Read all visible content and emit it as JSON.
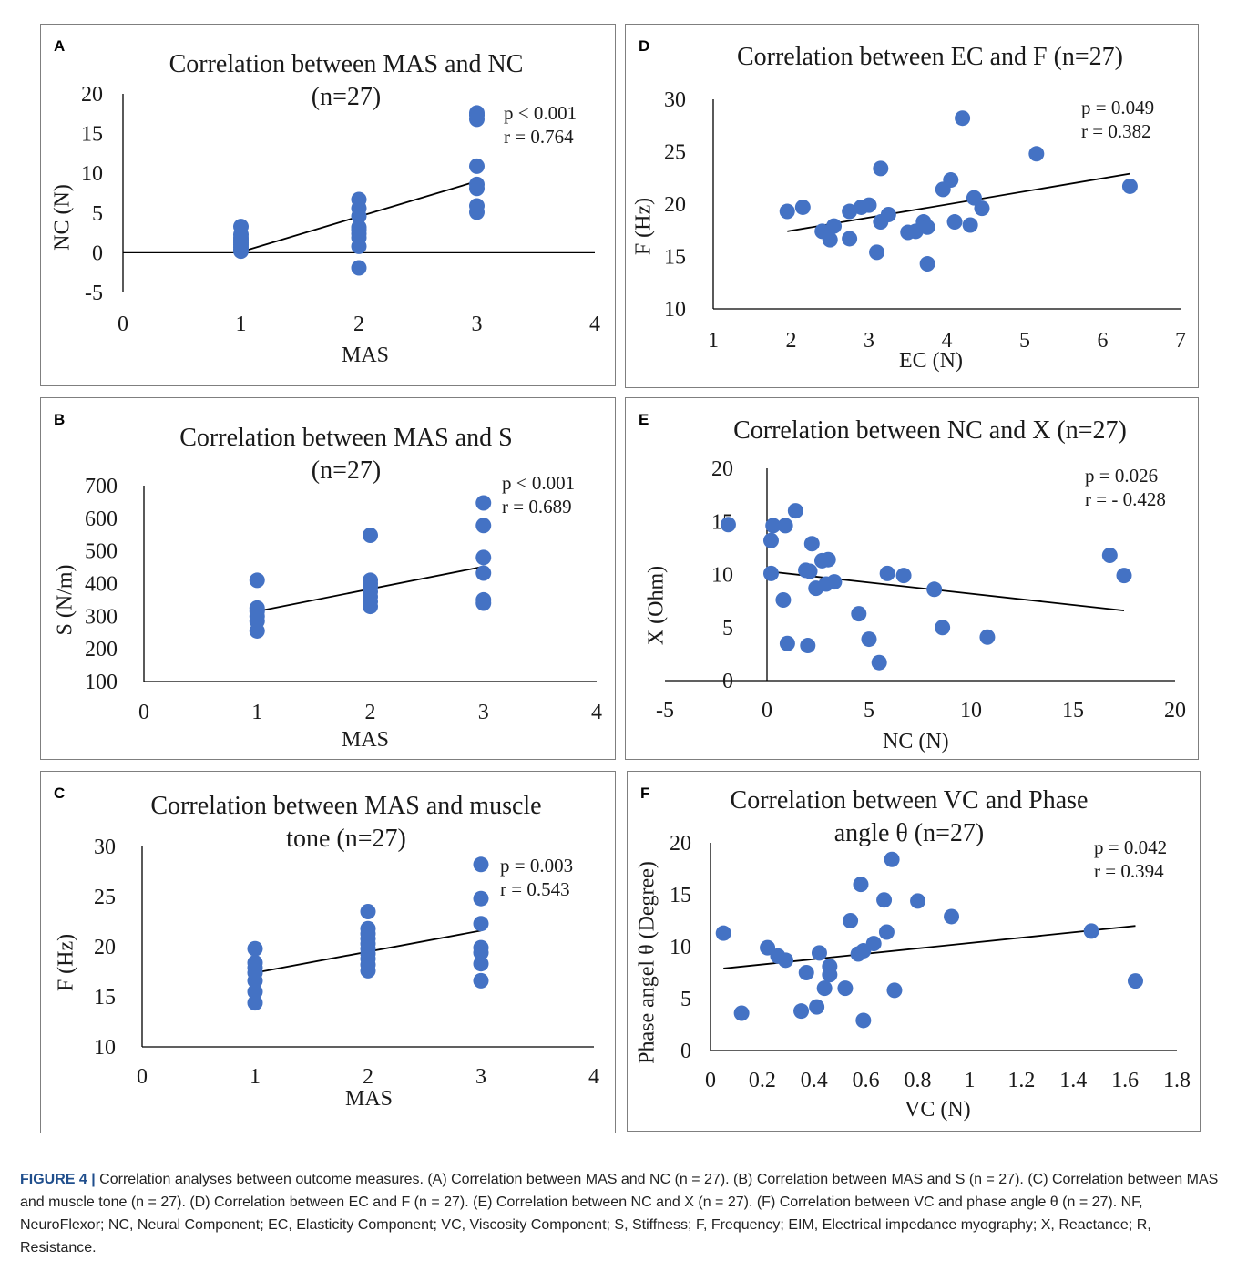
{
  "caption": {
    "figure_label": "FIGURE 4 |",
    "text": " Correlation analyses between outcome measures. (A) Correlation between MAS and NC (n = 27). (B) Correlation between MAS and S (n = 27). (C) Correlation between MAS and muscle tone (n = 27). (D) Correlation between EC and F (n = 27). (E) Correlation between NC and X (n = 27). (F) Correlation between VC and phase angle θ (n = 27). NF, NeuroFlexor; NC, Neural Component; EC, Elasticity Component; VC, Viscosity Component; S, Stiffness; F, Frequency; EIM, Electrical impedance myography; X, Reactance; R, Resistance."
  },
  "colors": {
    "marker": "#4472C4",
    "trendline": "#000000",
    "axis": "#000000",
    "border": "#7f7f7f"
  },
  "chart_data": [
    {
      "panel": "A",
      "type": "scatter",
      "title": "Correlation between MAS and NC\n(n=27)",
      "xlabel": "MAS",
      "ylabel": "NC (N)",
      "xlim": [
        0,
        4
      ],
      "ylim": [
        -5,
        20
      ],
      "xticks": [
        "0",
        "1",
        "2",
        "3",
        "4"
      ],
      "yticks": [
        "-5",
        "0",
        "5",
        "10",
        "15",
        "20"
      ],
      "stats": [
        "p < 0.001",
        "r = 0.764"
      ],
      "trendline": [
        [
          1,
          0.1
        ],
        [
          3,
          9.0
        ]
      ],
      "points": [
        [
          1,
          0.2
        ],
        [
          1,
          0.4
        ],
        [
          1,
          0.7
        ],
        [
          1,
          1.0
        ],
        [
          1,
          1.3
        ],
        [
          1,
          1.6
        ],
        [
          1,
          1.9
        ],
        [
          1,
          2.3
        ],
        [
          1,
          3.3
        ],
        [
          2,
          -1.9
        ],
        [
          2,
          0.8
        ],
        [
          2,
          1.9
        ],
        [
          2,
          2.4
        ],
        [
          2,
          2.9
        ],
        [
          2,
          3.2
        ],
        [
          2,
          4.6
        ],
        [
          2,
          5.6
        ],
        [
          2,
          6.7
        ],
        [
          3,
          5.1
        ],
        [
          3,
          5.9
        ],
        [
          3,
          8.1
        ],
        [
          3,
          8.6
        ],
        [
          3,
          10.9
        ],
        [
          3,
          16.8
        ],
        [
          3,
          17.3
        ],
        [
          3,
          17.6
        ]
      ]
    },
    {
      "panel": "B",
      "type": "scatter",
      "title": "Correlation between MAS and S\n(n=27)",
      "xlabel": "MAS",
      "ylabel": "S (N/m)",
      "xlim": [
        0,
        4
      ],
      "ylim": [
        100,
        700
      ],
      "xticks": [
        "0",
        "1",
        "2",
        "3",
        "4"
      ],
      "yticks": [
        "100",
        "200",
        "300",
        "400",
        "500",
        "600",
        "700"
      ],
      "stats": [
        "p < 0.001",
        "r = 0.689"
      ],
      "trendline": [
        [
          1,
          315
        ],
        [
          3,
          452
        ]
      ],
      "points": [
        [
          1,
          255
        ],
        [
          1,
          285
        ],
        [
          1,
          300
        ],
        [
          1,
          315
        ],
        [
          1,
          325
        ],
        [
          1,
          410
        ],
        [
          2,
          330
        ],
        [
          2,
          345
        ],
        [
          2,
          360
        ],
        [
          2,
          375
        ],
        [
          2,
          390
        ],
        [
          2,
          400
        ],
        [
          2,
          410
        ],
        [
          2,
          548
        ],
        [
          3,
          340
        ],
        [
          3,
          350
        ],
        [
          3,
          432
        ],
        [
          3,
          480
        ],
        [
          3,
          578
        ],
        [
          3,
          647
        ]
      ]
    },
    {
      "panel": "C",
      "type": "scatter",
      "title": "Correlation between MAS and muscle\ntone (n=27)",
      "xlabel": "MAS",
      "ylabel": "F (Hz)",
      "xlim": [
        0,
        4
      ],
      "ylim": [
        10,
        30
      ],
      "xticks": [
        "0",
        "1",
        "2",
        "3",
        "4"
      ],
      "yticks": [
        "10",
        "15",
        "20",
        "25",
        "30"
      ],
      "stats": [
        "p = 0.003",
        "r = 0.543"
      ],
      "trendline": [
        [
          1,
          17.4
        ],
        [
          3,
          21.6
        ]
      ],
      "points": [
        [
          1,
          14.4
        ],
        [
          1,
          15.5
        ],
        [
          1,
          16.6
        ],
        [
          1,
          17.4
        ],
        [
          1,
          17.9
        ],
        [
          1,
          18.4
        ],
        [
          1,
          19.8
        ],
        [
          2,
          17.6
        ],
        [
          2,
          18.2
        ],
        [
          2,
          18.8
        ],
        [
          2,
          19.3
        ],
        [
          2,
          19.8
        ],
        [
          2,
          20.3
        ],
        [
          2,
          20.8
        ],
        [
          2,
          21.3
        ],
        [
          2,
          21.8
        ],
        [
          2,
          23.5
        ],
        [
          3,
          16.6
        ],
        [
          3,
          18.3
        ],
        [
          3,
          19.4
        ],
        [
          3,
          19.9
        ],
        [
          3,
          22.3
        ],
        [
          3,
          24.8
        ],
        [
          3,
          28.2
        ]
      ]
    },
    {
      "panel": "D",
      "type": "scatter",
      "title": "Correlation between EC and F (n=27)",
      "xlabel": "EC (N)",
      "ylabel": "F (Hz)",
      "xlim": [
        1,
        7
      ],
      "ylim": [
        10,
        30
      ],
      "xticks": [
        "1",
        "2",
        "3",
        "4",
        "5",
        "6",
        "7"
      ],
      "yticks": [
        "10",
        "15",
        "20",
        "25",
        "30"
      ],
      "stats": [
        "p = 0.049",
        "r = 0.382"
      ],
      "trendline": [
        [
          1.95,
          17.4
        ],
        [
          6.35,
          22.9
        ]
      ],
      "points": [
        [
          1.95,
          19.3
        ],
        [
          2.15,
          19.7
        ],
        [
          2.4,
          17.4
        ],
        [
          2.5,
          16.6
        ],
        [
          2.55,
          17.9
        ],
        [
          2.75,
          16.7
        ],
        [
          2.75,
          19.3
        ],
        [
          2.9,
          19.7
        ],
        [
          3.0,
          19.9
        ],
        [
          3.1,
          15.4
        ],
        [
          3.15,
          23.4
        ],
        [
          3.15,
          18.3
        ],
        [
          3.25,
          19.0
        ],
        [
          3.5,
          17.3
        ],
        [
          3.6,
          17.4
        ],
        [
          3.7,
          18.3
        ],
        [
          3.75,
          17.8
        ],
        [
          3.75,
          14.3
        ],
        [
          3.95,
          21.4
        ],
        [
          4.05,
          22.3
        ],
        [
          4.1,
          18.3
        ],
        [
          4.2,
          28.2
        ],
        [
          4.3,
          18.0
        ],
        [
          4.35,
          20.6
        ],
        [
          4.45,
          19.6
        ],
        [
          5.15,
          24.8
        ],
        [
          6.35,
          21.7
        ]
      ]
    },
    {
      "panel": "E",
      "type": "scatter",
      "title": "Correlation between NC and X (n=27)",
      "xlabel": "NC (N)",
      "ylabel": "X (Ohm)",
      "xlim": [
        -5,
        20
      ],
      "ylim": [
        0,
        20
      ],
      "xticks": [
        "-5",
        "0",
        "5",
        "10",
        "15",
        "20"
      ],
      "yticks": [
        "0",
        "5",
        "10",
        "15",
        "20"
      ],
      "stats": [
        "p = 0.026",
        "r = - 0.428"
      ],
      "trendline": [
        [
          0,
          10.3
        ],
        [
          17.5,
          6.6
        ]
      ],
      "points": [
        [
          -1.9,
          14.7
        ],
        [
          0.2,
          13.2
        ],
        [
          0.3,
          14.6
        ],
        [
          0.2,
          10.1
        ],
        [
          0.8,
          7.6
        ],
        [
          0.9,
          14.6
        ],
        [
          1.0,
          3.5
        ],
        [
          1.4,
          16.0
        ],
        [
          1.9,
          10.4
        ],
        [
          2.0,
          3.3
        ],
        [
          2.1,
          10.3
        ],
        [
          2.2,
          12.9
        ],
        [
          2.4,
          8.7
        ],
        [
          2.7,
          11.3
        ],
        [
          3.0,
          11.4
        ],
        [
          2.9,
          9.1
        ],
        [
          3.3,
          9.3
        ],
        [
          4.5,
          6.3
        ],
        [
          5.0,
          3.9
        ],
        [
          5.5,
          1.7
        ],
        [
          5.9,
          10.1
        ],
        [
          6.7,
          9.9
        ],
        [
          8.2,
          8.6
        ],
        [
          8.6,
          5.0
        ],
        [
          10.8,
          4.1
        ],
        [
          16.8,
          11.8
        ],
        [
          17.5,
          9.9
        ]
      ]
    },
    {
      "panel": "F",
      "type": "scatter",
      "title": "Correlation between VC and Phase\nangle θ (n=27)",
      "xlabel": "VC (N)",
      "ylabel": "Phase angel θ (Degree)",
      "xlim": [
        0,
        1.8
      ],
      "ylim": [
        0,
        20
      ],
      "xticks": [
        "0",
        "0.2",
        "0.4",
        "0.6",
        "0.8",
        "1",
        "1.2",
        "1.4",
        "1.6",
        "1.8"
      ],
      "yticks": [
        "0",
        "5",
        "10",
        "15",
        "20"
      ],
      "stats": [
        "p = 0.042",
        "r = 0.394"
      ],
      "trendline": [
        [
          0.05,
          7.9
        ],
        [
          1.64,
          12.0
        ]
      ],
      "points": [
        [
          0.05,
          11.3
        ],
        [
          0.12,
          3.6
        ],
        [
          0.22,
          9.9
        ],
        [
          0.26,
          9.1
        ],
        [
          0.29,
          8.7
        ],
        [
          0.35,
          3.8
        ],
        [
          0.37,
          7.5
        ],
        [
          0.41,
          4.2
        ],
        [
          0.42,
          9.4
        ],
        [
          0.44,
          6.0
        ],
        [
          0.46,
          7.3
        ],
        [
          0.46,
          8.1
        ],
        [
          0.52,
          6.0
        ],
        [
          0.54,
          12.5
        ],
        [
          0.57,
          9.3
        ],
        [
          0.58,
          16.0
        ],
        [
          0.59,
          9.6
        ],
        [
          0.59,
          2.9
        ],
        [
          0.63,
          10.3
        ],
        [
          0.67,
          14.5
        ],
        [
          0.68,
          11.4
        ],
        [
          0.7,
          18.4
        ],
        [
          0.71,
          5.8
        ],
        [
          0.8,
          14.4
        ],
        [
          0.93,
          12.9
        ],
        [
          1.47,
          11.5
        ],
        [
          1.64,
          6.7
        ]
      ]
    }
  ]
}
